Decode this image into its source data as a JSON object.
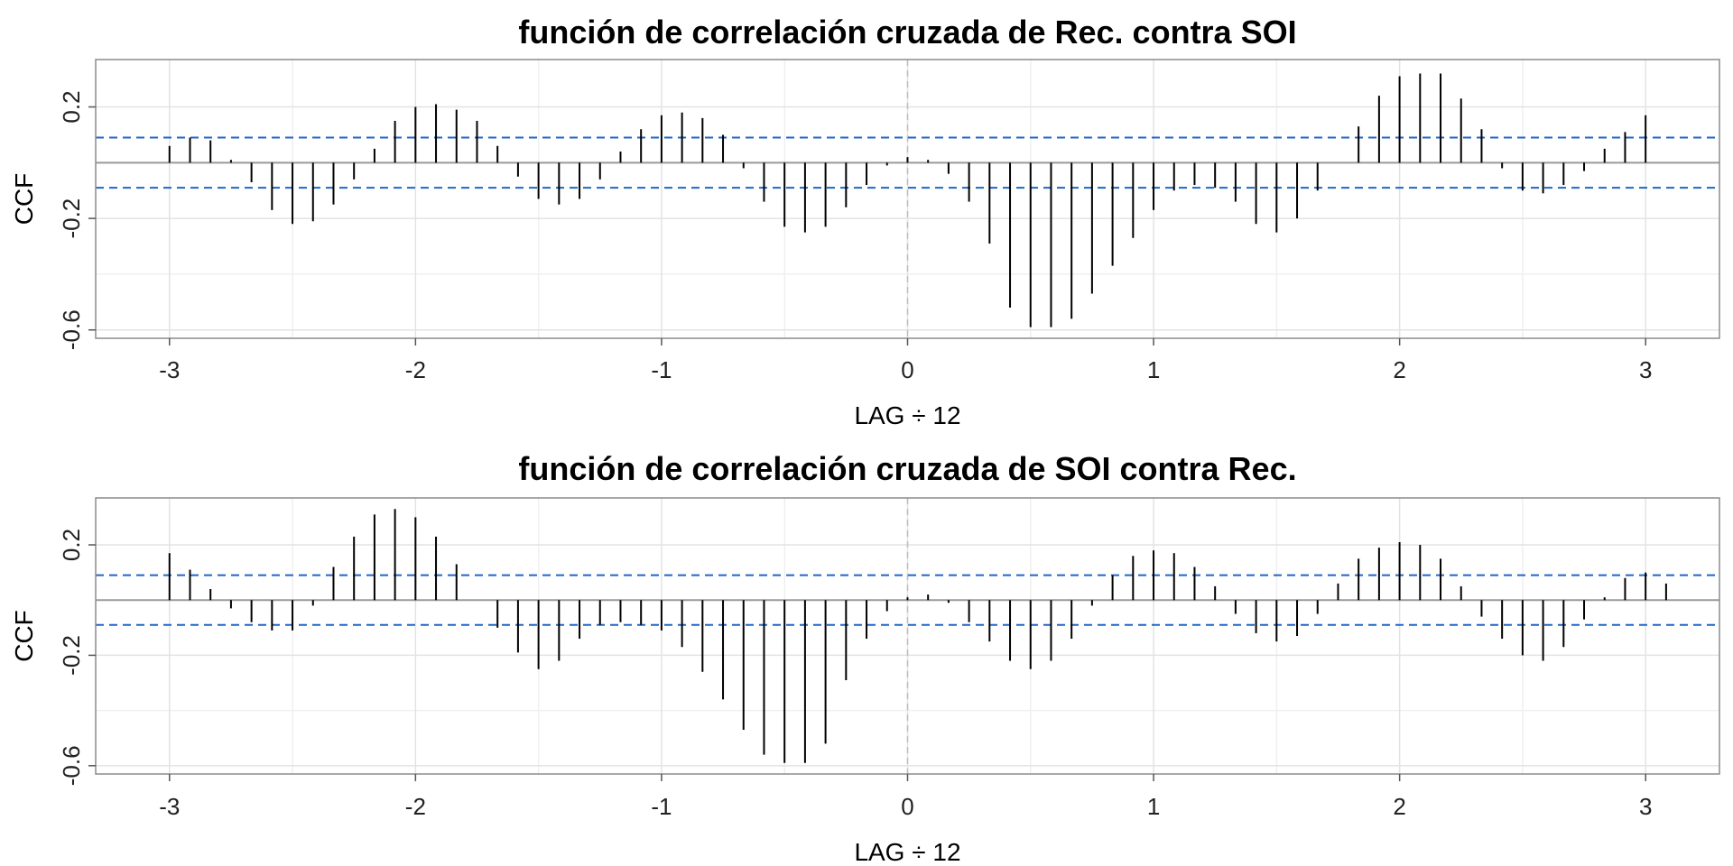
{
  "chart_data": [
    {
      "type": "bar",
      "title": "función de correlación cruzada de Rec. contra SOI",
      "xlabel": "LAG ÷ 12",
      "ylabel": "CCF",
      "xlim": [
        -3.3,
        3.3
      ],
      "ylim": [
        -0.63,
        0.37
      ],
      "xticks": [
        -3,
        -2,
        -1,
        0,
        1,
        2,
        3
      ],
      "xtick_labels": [
        "-3",
        "-2",
        "-1",
        "0",
        "1",
        "2",
        "3"
      ],
      "yticks": [
        0.2,
        -0.2,
        -0.6
      ],
      "ytick_labels": [
        "0.2",
        "-0.2",
        "-0.6"
      ],
      "conf_bound": 0.09,
      "zero_line": 0,
      "lag_start": -3,
      "lag_step": 0.08333,
      "values": [
        0.06,
        0.09,
        0.08,
        0.01,
        -0.07,
        -0.17,
        -0.22,
        -0.21,
        -0.15,
        -0.06,
        0.05,
        0.15,
        0.2,
        0.21,
        0.19,
        0.15,
        0.06,
        -0.05,
        -0.13,
        -0.15,
        -0.13,
        -0.06,
        0.04,
        0.12,
        0.17,
        0.18,
        0.16,
        0.1,
        -0.02,
        -0.14,
        -0.23,
        -0.25,
        -0.23,
        -0.16,
        -0.08,
        -0.01,
        0.02,
        0.01,
        -0.04,
        -0.14,
        -0.29,
        -0.52,
        -0.59,
        -0.59,
        -0.56,
        -0.47,
        -0.37,
        -0.27,
        -0.17,
        -0.1,
        -0.08,
        -0.09,
        -0.14,
        -0.22,
        -0.25,
        -0.2,
        -0.1,
        0.0,
        0.13,
        0.24,
        0.31,
        0.32,
        0.32,
        0.23,
        0.12,
        -0.02,
        -0.1,
        -0.11,
        -0.08,
        -0.03,
        0.05,
        0.11,
        0.17
      ]
    },
    {
      "type": "bar",
      "title": "función de correlación cruzada de SOI contra Rec.",
      "xlabel": "LAG ÷ 12",
      "ylabel": "CCF",
      "xlim": [
        -3.3,
        3.3
      ],
      "ylim": [
        -0.63,
        0.37
      ],
      "xticks": [
        -3,
        -2,
        -1,
        0,
        1,
        2,
        3
      ],
      "xtick_labels": [
        "-3",
        "-2",
        "-1",
        "0",
        "1",
        "2",
        "3"
      ],
      "yticks": [
        0.2,
        -0.2,
        -0.6
      ],
      "ytick_labels": [
        "0.2",
        "-0.2",
        "-0.6"
      ],
      "conf_bound": 0.09,
      "zero_line": 0,
      "lag_start": -3,
      "lag_step": 0.08333,
      "values": [
        0.17,
        0.11,
        0.04,
        -0.03,
        -0.08,
        -0.11,
        -0.11,
        -0.02,
        0.12,
        0.23,
        0.31,
        0.33,
        0.3,
        0.23,
        0.13,
        0.0,
        -0.1,
        -0.19,
        -0.25,
        -0.22,
        -0.14,
        -0.09,
        -0.08,
        -0.09,
        -0.11,
        -0.17,
        -0.26,
        -0.36,
        -0.47,
        -0.56,
        -0.59,
        -0.59,
        -0.52,
        -0.29,
        -0.14,
        -0.04,
        0.01,
        0.02,
        -0.01,
        -0.08,
        -0.15,
        -0.22,
        -0.25,
        -0.22,
        -0.14,
        -0.02,
        0.09,
        0.16,
        0.18,
        0.17,
        0.12,
        0.05,
        -0.05,
        -0.12,
        -0.15,
        -0.13,
        -0.05,
        0.06,
        0.15,
        0.19,
        0.21,
        0.2,
        0.15,
        0.05,
        -0.06,
        -0.14,
        -0.2,
        -0.22,
        -0.17,
        -0.07,
        0.01,
        0.08,
        0.1,
        0.06
      ]
    }
  ]
}
